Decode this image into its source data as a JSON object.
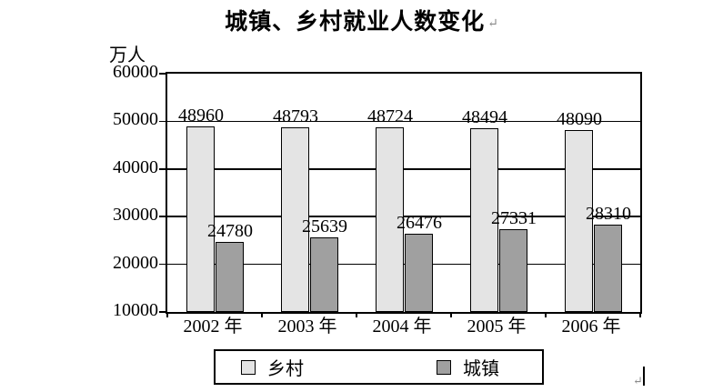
{
  "document": {
    "paragraph_mark": "↵",
    "cursor_return_mark": "↵"
  },
  "chart_data": {
    "type": "bar",
    "title": "城镇、乡村就业人数变化",
    "unit_label": "万人",
    "categories": [
      "2002 年",
      "2003 年",
      "2004 年",
      "2005 年",
      "2006 年"
    ],
    "series": [
      {
        "name": "乡村",
        "color": "#e4e4e4",
        "border_color": "#000000",
        "values": [
          48960,
          48793,
          48724,
          48494,
          48090
        ]
      },
      {
        "name": "城镇",
        "color": "#a0a0a0",
        "border_color": "#000000",
        "values": [
          24780,
          25639,
          26476,
          27331,
          28310
        ]
      }
    ],
    "ylim": [
      10000,
      60000
    ],
    "ytick_step": 10000,
    "ytick_labels": [
      "10000",
      "20000",
      "30000",
      "40000",
      "50000",
      "60000"
    ],
    "grid": true,
    "value_labels": true,
    "legend_position": "bottom",
    "background_color": "#ffffff",
    "line_color": "#000000"
  }
}
